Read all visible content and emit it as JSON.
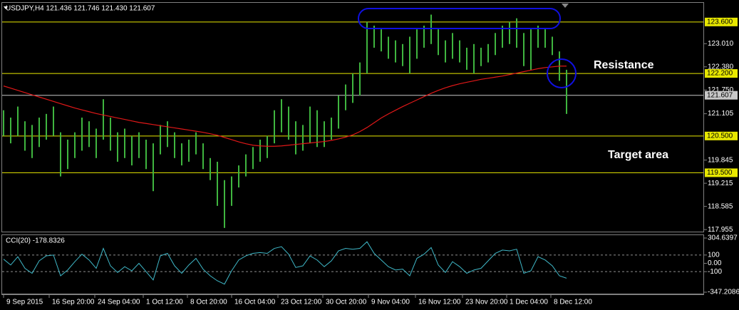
{
  "chart_data": [
    {
      "type": "ohlc",
      "title": "USDJPY,H4  121.436 121.746 121.430 121.607",
      "color": "#3fb53f",
      "high": [
        121.2,
        121.0,
        121.3,
        120.9,
        120.8,
        121.0,
        121.1,
        121.3,
        120.6,
        120.4,
        120.6,
        121.0,
        120.9,
        120.7,
        121.5,
        121.0,
        120.6,
        120.7,
        120.5,
        120.6,
        120.4,
        120.3,
        120.8,
        120.9,
        120.6,
        120.3,
        120.4,
        120.6,
        120.3,
        119.9,
        119.8,
        119.3,
        119.4,
        119.7,
        120.0,
        120.2,
        120.4,
        120.5,
        121.2,
        121.5,
        121.3,
        120.9,
        120.8,
        121.3,
        121.2,
        120.9,
        121.0,
        121.6,
        121.9,
        122.2,
        122.5,
        123.6,
        123.5,
        123.4,
        123.2,
        123.1,
        123.0,
        123.2,
        123.4,
        123.5,
        123.8,
        123.4,
        123.1,
        123.3,
        123.1,
        122.9,
        123.0,
        122.9,
        123.0,
        123.3,
        123.5,
        123.6,
        123.7,
        123.3,
        123.4,
        123.5,
        123.4,
        123.2,
        122.8,
        122.3
      ],
      "low": [
        120.5,
        120.3,
        120.5,
        120.1,
        119.9,
        120.2,
        120.4,
        120.5,
        119.4,
        119.6,
        119.9,
        120.1,
        120.2,
        119.9,
        120.4,
        120.1,
        119.8,
        119.9,
        119.7,
        119.9,
        119.6,
        119.0,
        120.0,
        120.2,
        119.9,
        119.7,
        119.8,
        120.0,
        119.6,
        119.3,
        118.6,
        118.0,
        118.6,
        119.1,
        119.4,
        119.6,
        119.8,
        119.9,
        120.3,
        120.6,
        120.4,
        120.0,
        120.1,
        120.3,
        120.2,
        120.2,
        120.4,
        120.7,
        121.2,
        121.4,
        121.6,
        122.2,
        122.9,
        122.8,
        122.6,
        122.5,
        122.4,
        122.2,
        122.6,
        122.9,
        123.0,
        122.7,
        122.5,
        122.6,
        122.5,
        122.3,
        122.2,
        122.4,
        122.5,
        122.7,
        122.9,
        123.0,
        122.9,
        122.4,
        122.3,
        122.9,
        122.9,
        122.7,
        122.0,
        121.1
      ],
      "moving_average": {
        "color": "#e01818",
        "values": [
          121.86,
          121.8,
          121.74,
          121.68,
          121.62,
          121.56,
          121.5,
          121.44,
          121.38,
          121.32,
          121.26,
          121.21,
          121.16,
          121.11,
          121.07,
          121.03,
          120.99,
          120.95,
          120.91,
          120.87,
          120.84,
          120.81,
          120.78,
          120.75,
          120.72,
          120.69,
          120.66,
          120.63,
          120.6,
          120.56,
          120.52,
          120.46,
          120.4,
          120.34,
          120.29,
          120.25,
          120.23,
          120.22,
          120.22,
          120.23,
          120.25,
          120.27,
          120.29,
          120.31,
          120.33,
          120.35,
          120.38,
          120.42,
          120.47,
          120.53,
          120.62,
          120.73,
          120.86,
          120.99,
          121.1,
          121.2,
          121.3,
          121.39,
          121.48,
          121.57,
          121.66,
          121.74,
          121.81,
          121.87,
          121.92,
          121.96,
          122.0,
          122.04,
          122.07,
          122.1,
          122.13,
          122.17,
          122.21,
          122.25,
          122.29,
          122.33,
          122.36,
          122.38,
          122.4,
          122.4
        ]
      },
      "xlim": [
        -0.5,
        98.3
      ],
      "xticks": [
        {
          "value": 0,
          "label": "9 Sep 2015"
        },
        {
          "value": 6.4,
          "label": "16 Sep 20:00"
        },
        {
          "value": 12.8,
          "label": "24 Sep 04:00"
        },
        {
          "value": 19.6,
          "label": "1 Oct 12:00"
        },
        {
          "value": 25.8,
          "label": "8 Oct 20:00"
        },
        {
          "value": 32,
          "label": "16 Oct 04:00"
        },
        {
          "value": 38.5,
          "label": "23 Oct 12:00"
        },
        {
          "value": 44.8,
          "label": "30 Oct 20:00"
        },
        {
          "value": 51.2,
          "label": "9 Nov 04:00"
        },
        {
          "value": 57.8,
          "label": "16 Nov 12:00"
        },
        {
          "value": 64.4,
          "label": "23 Nov 20:00"
        },
        {
          "value": 70.6,
          "label": "1 Dec 04:00"
        },
        {
          "value": 76.8,
          "label": "8 Dec 12:00"
        }
      ],
      "ylim": [
        117.9,
        124.12
      ],
      "yticks": [
        {
          "value": 123.01,
          "label": "123.010"
        },
        {
          "value": 122.38,
          "label": "122.380"
        },
        {
          "value": 121.75,
          "label": "121.750"
        },
        121.105,
        119.845,
        119.215,
        118.585,
        117.955
      ],
      "levels": [
        {
          "value": 123.6,
          "label": "123.600",
          "color": "#e8e800"
        },
        {
          "value": 122.2,
          "label": "122.200",
          "color": "#e8e800"
        },
        {
          "value": 121.607,
          "color": "#c8c8c8"
        },
        {
          "value": 120.5,
          "label": "120.500",
          "color": "#e8e800"
        },
        {
          "value": 119.5,
          "label": "119.500",
          "color": "#e8e800"
        }
      ],
      "annotations": [
        "Resistance",
        "Target area"
      ]
    },
    {
      "type": "line",
      "title": "CCI(20) -178.8326",
      "color": "#3fb8c8",
      "values": [
        50,
        -20,
        80,
        -60,
        -120,
        30,
        90,
        100,
        -150,
        -80,
        20,
        110,
        40,
        -60,
        180,
        -30,
        -110,
        -40,
        -90,
        0,
        -100,
        -200,
        90,
        120,
        -30,
        -120,
        -20,
        60,
        -70,
        -150,
        -210,
        -250,
        -90,
        40,
        90,
        120,
        130,
        120,
        180,
        200,
        110,
        -50,
        -30,
        90,
        40,
        -40,
        30,
        150,
        180,
        170,
        180,
        260,
        120,
        40,
        -40,
        -80,
        -70,
        -150,
        60,
        110,
        190,
        -20,
        -110,
        20,
        -40,
        -120,
        -80,
        -60,
        30,
        120,
        160,
        150,
        170,
        -120,
        -90,
        80,
        40,
        -30,
        -150,
        -178.8326
      ],
      "xlim": [
        -0.5,
        98.3
      ],
      "ylim": [
        -347.2086,
        304.6397
      ],
      "yticks": [
        304.6397,
        100,
        {
          "value": 0,
          "label": "0.00"
        },
        -100,
        -347.2086
      ]
    }
  ]
}
